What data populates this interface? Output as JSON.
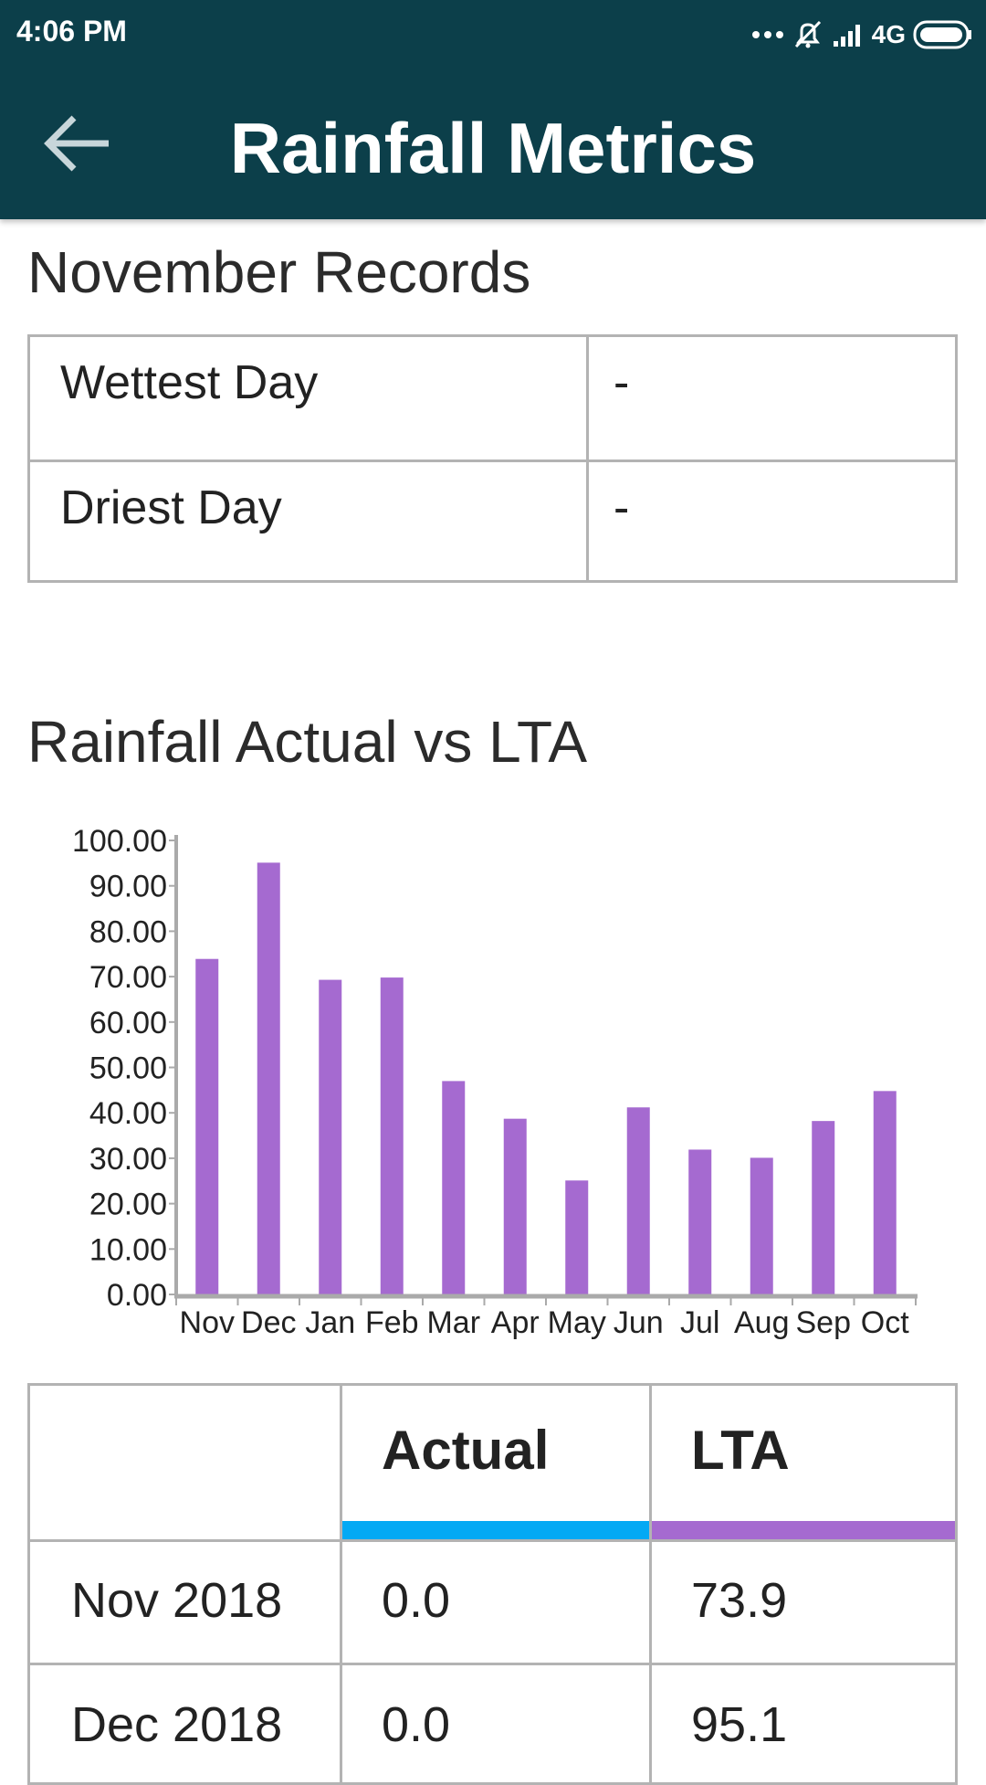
{
  "status_bar": {
    "time": "4:06 PM",
    "network": "4G"
  },
  "app_bar": {
    "title": "Rainfall Metrics"
  },
  "records": {
    "title": "November Records",
    "rows": [
      {
        "label": "Wettest Day",
        "value": "-"
      },
      {
        "label": "Driest Day",
        "value": "-"
      }
    ]
  },
  "chart_section": {
    "title": "Rainfall Actual vs LTA"
  },
  "chart_data": {
    "type": "bar",
    "categories": [
      "Nov",
      "Dec",
      "Jan",
      "Feb",
      "Mar",
      "Apr",
      "May",
      "Jun",
      "Jul",
      "Aug",
      "Sep",
      "Oct"
    ],
    "series": [
      {
        "values": [
          73.9,
          95.1,
          69.3,
          69.8,
          47.0,
          38.7,
          25.1,
          41.2,
          31.9,
          30.1,
          38.2,
          44.8
        ]
      }
    ],
    "ylim": [
      0,
      100
    ],
    "yticks": [
      "0.00",
      "10.00",
      "20.00",
      "30.00",
      "40.00",
      "50.00",
      "60.00",
      "70.00",
      "80.00",
      "90.00",
      "100.00"
    ],
    "colors": {
      "bar": "#a56ad0",
      "axis": "#aaaaaa"
    }
  },
  "table": {
    "headers": [
      "",
      "Actual",
      "LTA"
    ],
    "header_colors": {
      "actual": "#03a9f4",
      "lta": "#a56ad0"
    },
    "rows": [
      {
        "period": "Nov 2018",
        "actual": "0.0",
        "lta": "73.9"
      },
      {
        "period": "Dec 2018",
        "actual": "0.0",
        "lta": "95.1"
      }
    ]
  }
}
